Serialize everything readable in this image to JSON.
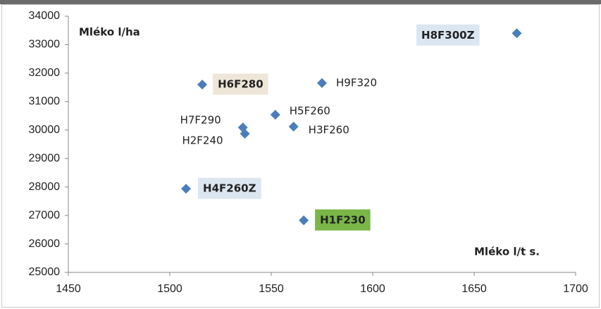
{
  "chart_data": {
    "type": "scatter",
    "x_label": "Mléko l/t s.",
    "y_label": "Mléko l/ha",
    "x": [
      1671,
      1516,
      1575,
      1552,
      1561,
      1536,
      1537,
      1508,
      1566
    ],
    "series": [
      {
        "color": "#4a7ebb",
        "values": [
          33400,
          31600,
          31650,
          30540,
          30120,
          30090,
          29870,
          27940,
          26830
        ]
      }
    ],
    "labels": [
      "H8F300Z",
      "H6F280",
      "H9F320",
      "H5F260",
      "H3F260",
      "H7F290",
      "H2F240",
      "H4F260Z",
      "H1F230"
    ],
    "label_backgrounds": [
      "#dce6f1",
      "#eee6d8",
      null,
      null,
      null,
      null,
      null,
      "#dce6f1",
      "#7ab648"
    ],
    "xlim": [
      1450,
      1700
    ],
    "xticks": [
      1450,
      1500,
      1550,
      1600,
      1650,
      1700
    ],
    "ylim": [
      25000,
      34000
    ],
    "yticks": [
      25000,
      26000,
      27000,
      28000,
      29000,
      30000,
      31000,
      32000,
      33000,
      34000
    ]
  }
}
